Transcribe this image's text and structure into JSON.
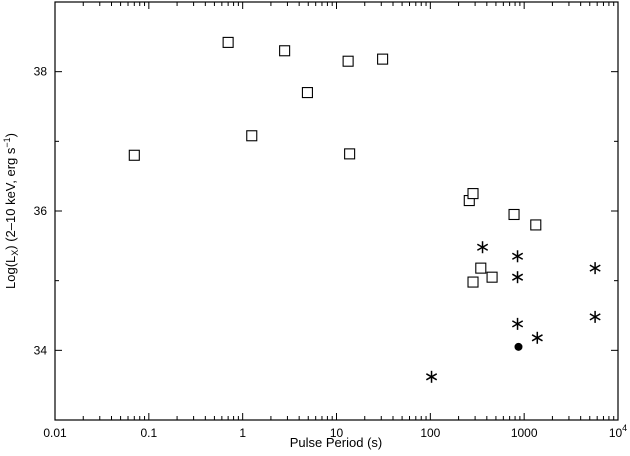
{
  "chart_data": {
    "type": "scatter",
    "title": "",
    "xlabel": "Pulse Period (s)",
    "ylabel_parts": [
      "Log(L",
      "X",
      ") (2–10 keV, erg s",
      "−1",
      ")"
    ],
    "xscale": "log",
    "xlim": [
      0.01,
      10000
    ],
    "ylim": [
      33,
      39
    ],
    "x_tick_labels": [
      {
        "value": 0.01,
        "label": "0.01"
      },
      {
        "value": 0.1,
        "label": "0.1"
      },
      {
        "value": 1,
        "label": "1"
      },
      {
        "value": 10,
        "label": "10"
      },
      {
        "value": 100,
        "label": "100"
      },
      {
        "value": 1000,
        "label": "1000"
      },
      {
        "value": 10000,
        "label": "10",
        "sup": "4"
      }
    ],
    "y_tick_labels": [
      {
        "value": 34,
        "label": "34"
      },
      {
        "value": 36,
        "label": "36"
      },
      {
        "value": 38,
        "label": "38"
      }
    ],
    "grid": false,
    "legend": "none",
    "series": [
      {
        "marker": "open-square",
        "points": [
          {
            "x": 0.07,
            "y": 36.8
          },
          {
            "x": 0.7,
            "y": 38.42
          },
          {
            "x": 1.25,
            "y": 37.08
          },
          {
            "x": 2.8,
            "y": 38.3
          },
          {
            "x": 4.9,
            "y": 37.7
          },
          {
            "x": 13.3,
            "y": 38.15
          },
          {
            "x": 13.8,
            "y": 36.82
          },
          {
            "x": 31,
            "y": 38.18
          },
          {
            "x": 260,
            "y": 36.15
          },
          {
            "x": 285,
            "y": 36.25
          },
          {
            "x": 285,
            "y": 34.98
          },
          {
            "x": 345,
            "y": 35.18
          },
          {
            "x": 455,
            "y": 35.05
          },
          {
            "x": 780,
            "y": 35.95
          },
          {
            "x": 1330,
            "y": 35.8
          }
        ]
      },
      {
        "marker": "asterisk",
        "points": [
          {
            "x": 103,
            "y": 33.62
          },
          {
            "x": 360,
            "y": 35.48
          },
          {
            "x": 850,
            "y": 35.35
          },
          {
            "x": 850,
            "y": 35.05
          },
          {
            "x": 850,
            "y": 34.38
          },
          {
            "x": 1380,
            "y": 34.18
          },
          {
            "x": 5700,
            "y": 35.18
          },
          {
            "x": 5700,
            "y": 34.48
          }
        ]
      },
      {
        "marker": "filled-circle",
        "points": [
          {
            "x": 870,
            "y": 34.05
          }
        ]
      }
    ]
  }
}
